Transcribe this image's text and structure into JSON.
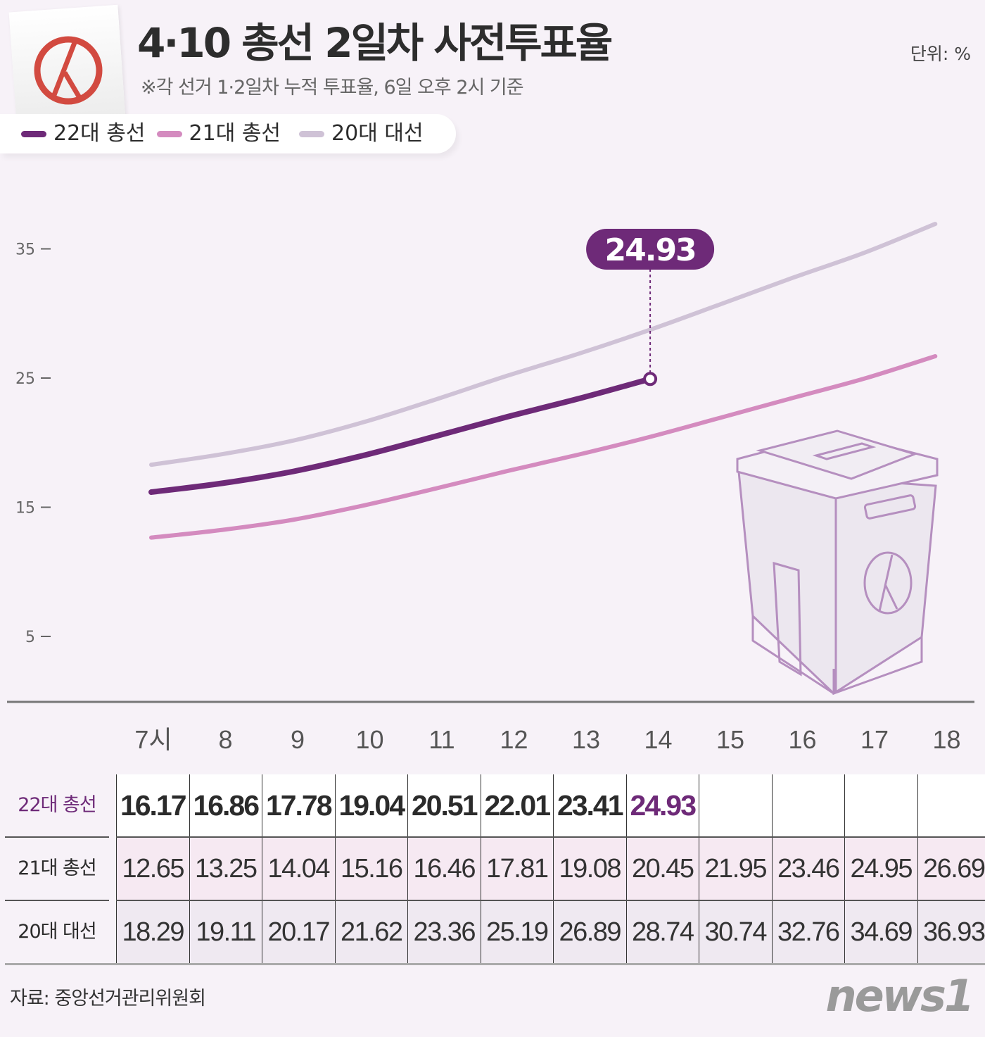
{
  "header": {
    "title": "4·10 총선 2일차 사전투표율",
    "subtitle": "※각 선거 1·2일차 누적 투표율, 6일 오후 2시 기준",
    "unit": "단위: %",
    "logo_icon": "ballot-stamp-icon"
  },
  "chart_data": {
    "type": "line",
    "title": "4·10 총선 2일차 사전투표율",
    "categories": [
      "7시",
      "8",
      "9",
      "10",
      "11",
      "12",
      "13",
      "14",
      "15",
      "16",
      "17",
      "18"
    ],
    "yticks": [
      "35",
      "25",
      "15",
      "5"
    ],
    "ylim": [
      0,
      37
    ],
    "legend_position": "top-left",
    "grid": false,
    "series": [
      {
        "name": "22대 총선",
        "color": "#6e2a78",
        "values": [
          16.17,
          16.86,
          17.78,
          19.04,
          20.51,
          22.01,
          23.41,
          24.93,
          null,
          null,
          null,
          null
        ]
      },
      {
        "name": "21대 총선",
        "color": "#d48bbf",
        "values": [
          12.65,
          13.25,
          14.04,
          15.16,
          16.46,
          17.81,
          19.08,
          20.45,
          21.95,
          23.46,
          24.95,
          26.69
        ]
      },
      {
        "name": "20대 대선",
        "color": "#cfc2d6",
        "values": [
          18.29,
          19.11,
          20.17,
          21.62,
          23.36,
          25.19,
          26.89,
          28.74,
          30.74,
          32.76,
          34.69,
          36.93
        ]
      }
    ],
    "annotation": "24.93"
  },
  "table": {
    "rows": [
      {
        "label": "22대 총선",
        "values": [
          "16.17",
          "16.86",
          "17.78",
          "19.04",
          "20.51",
          "22.01",
          "23.41",
          "24.93",
          "",
          "",
          "",
          ""
        ]
      },
      {
        "label": "21대 총선",
        "values": [
          "12.65",
          "13.25",
          "14.04",
          "15.16",
          "16.46",
          "17.81",
          "19.08",
          "20.45",
          "21.95",
          "23.46",
          "24.95",
          "26.69"
        ]
      },
      {
        "label": "20대 대선",
        "values": [
          "18.29",
          "19.11",
          "20.17",
          "21.62",
          "23.36",
          "25.19",
          "26.89",
          "28.74",
          "30.74",
          "32.76",
          "34.69",
          "36.93"
        ]
      }
    ]
  },
  "footer": {
    "source": "자료: 중앙선거관리위원회",
    "brand": "news1"
  }
}
